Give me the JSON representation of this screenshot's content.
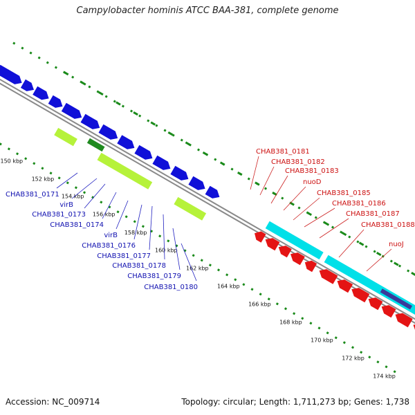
{
  "title": "Campylobacter hominis ATCC BAA-381, complete genome",
  "footer": {
    "accession": "Accession: NC_009714",
    "topology": "Topology: circular; Length: 1,711,273 bp; Genes: 1,738"
  },
  "colors": {
    "forward_gene": "#1010d8",
    "reverse_gene": "#e41414",
    "gc_content": "#00e0e8",
    "feature_light_green": "#b6f23a",
    "feature_dark_green": "#1f8a1f",
    "feature_purple": "#3a3a9a",
    "backbone": "#8a8a8a",
    "ticks": "#1a8a1a",
    "forward_label": "#1010b0",
    "reverse_label": "#cc1010"
  },
  "kbp_ticks": [
    "150 kbp",
    "152 kbp",
    "154 kbp",
    "156 kbp",
    "158 kbp",
    "160 kbp",
    "162 kbp",
    "164 kbp",
    "166 kbp",
    "168 kbp",
    "170 kbp",
    "172 kbp",
    "174 kbp"
  ],
  "forward_labels": [
    "CHAB381_0171",
    "virB",
    "CHAB381_0173",
    "CHAB381_0174",
    "virB",
    "CHAB381_0176",
    "CHAB381_0177",
    "CHAB381_0178",
    "CHAB381_0179",
    "CHAB381_0180"
  ],
  "reverse_labels": [
    "CHAB381_0181",
    "CHAB381_0182",
    "CHAB381_0183",
    "nuoD",
    "CHAB381_0185",
    "CHAB381_0186",
    "CHAB381_0187",
    "CHAB381_0188",
    "nuoJ"
  ]
}
